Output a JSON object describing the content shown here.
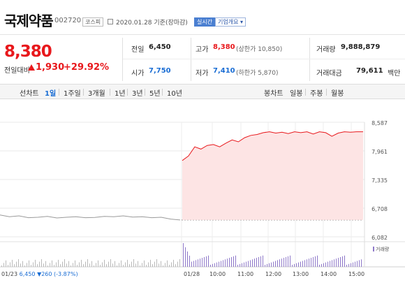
{
  "header": {
    "name": "국제약품",
    "code": "002720",
    "market": "코스피",
    "date": "2020.01.28  기준(장마감)",
    "realtime": "실시간",
    "corp_info": "기업개요 ▾"
  },
  "price": {
    "current": "8,380",
    "change_label": "전일대비",
    "change": "1,930",
    "rate": "+29.92%"
  },
  "stats": {
    "prev_label": "전일",
    "prev": "6,450",
    "high_label": "고가",
    "high": "8,380",
    "upper": "(상한가 10,850)",
    "vol_label": "거래량",
    "vol": "9,888,879",
    "open_label": "시가",
    "open": "7,750",
    "low_label": "저가",
    "low": "7,410",
    "lower": "(하한가 5,870)",
    "amt_label": "거래대금",
    "amt": "79,611",
    "amt_unit": "백만"
  },
  "tabs": {
    "line": "선차트",
    "items": [
      "1일",
      "1주일",
      "3개월",
      "1년",
      "3년",
      "5년",
      "10년"
    ],
    "candle": "봉차트",
    "candle_items": [
      "일봉",
      "주봉",
      "월봉"
    ]
  },
  "chart_data": {
    "type": "line",
    "y_ticks": [
      "8,587",
      "7,961",
      "7,335",
      "6,708",
      "6,082"
    ],
    "ylim": [
      6082,
      8587
    ],
    "x_ticks": [
      "01/28",
      "10:00",
      "11:00",
      "12:00",
      "13:00",
      "14:00",
      "15:00"
    ],
    "prev_day": {
      "label": "01/23",
      "close": "6,450",
      "change": "▼260 (-3.87%)",
      "values": [
        6560,
        6520,
        6540,
        6500,
        6510,
        6530,
        6495,
        6510,
        6520,
        6500,
        6505,
        6530,
        6520,
        6540,
        6515,
        6520,
        6500,
        6510,
        6470,
        6450
      ]
    },
    "today": {
      "base": 6450,
      "values": [
        7750,
        7850,
        8050,
        8000,
        8080,
        8100,
        8050,
        8130,
        8200,
        8160,
        8250,
        8300,
        8320,
        8360,
        8380,
        8350,
        8370,
        8340,
        8380,
        8360,
        8380,
        8330,
        8380,
        8360,
        8280,
        8350,
        8380,
        8370,
        8380,
        8380
      ]
    },
    "volume_legend": "거래량"
  }
}
